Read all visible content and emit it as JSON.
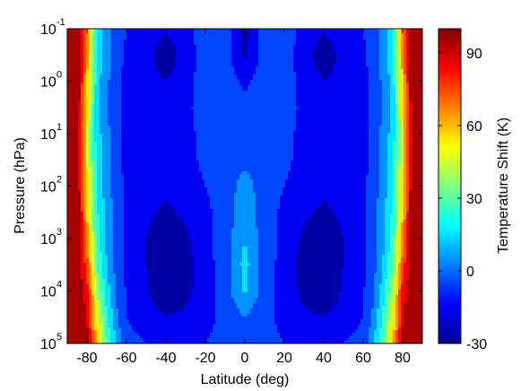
{
  "chart_data": {
    "type": "heatmap",
    "title": "",
    "xlabel": "Latitude (deg)",
    "ylabel": "Pressure (hPa)",
    "colorbar_label": "Temperature Shift (K)",
    "xlim": [
      -90,
      90
    ],
    "x_ticks": [
      -80,
      -60,
      -40,
      -20,
      0,
      20,
      40,
      60,
      80
    ],
    "y_scale": "log",
    "y_direction": "increasing-downward",
    "ylim_exponents": [
      -1,
      5
    ],
    "y_ticks": [
      {
        "base": "10",
        "exp": "-1"
      },
      {
        "base": "10",
        "exp": "0"
      },
      {
        "base": "10",
        "exp": "1"
      },
      {
        "base": "10",
        "exp": "2"
      },
      {
        "base": "10",
        "exp": "3"
      },
      {
        "base": "10",
        "exp": "4"
      },
      {
        "base": "10",
        "exp": "5"
      }
    ],
    "clim": [
      -30,
      100
    ],
    "colorbar_ticks": [
      -30,
      0,
      30,
      60,
      90
    ],
    "colormap": "jet",
    "latitudes": [
      -90,
      -85,
      -80,
      -75,
      -70,
      -65,
      -60,
      -50,
      -40,
      -30,
      -20,
      -10,
      0,
      10,
      20,
      30,
      40,
      50,
      60,
      65,
      70,
      75,
      80,
      85,
      90
    ],
    "log_pressure": [
      -1,
      -0.5,
      0,
      0.5,
      1,
      1.5,
      2,
      2.5,
      3,
      3.5,
      4,
      4.5,
      5
    ],
    "temperature_shift": [
      [
        100,
        100,
        70,
        20,
        5,
        -5,
        -10,
        -12,
        -18,
        -12,
        -6,
        -4,
        -25,
        -4,
        -6,
        -12,
        -18,
        -12,
        -10,
        -5,
        5,
        20,
        70,
        100,
        100
      ],
      [
        100,
        100,
        65,
        18,
        4,
        -6,
        -12,
        -16,
        -28,
        -14,
        -7,
        -5,
        -22,
        -5,
        -7,
        -14,
        -28,
        -16,
        -12,
        -6,
        4,
        18,
        65,
        100,
        100
      ],
      [
        100,
        100,
        60,
        14,
        2,
        -7,
        -13,
        -16,
        -20,
        -13,
        -6,
        -5,
        -12,
        -5,
        -6,
        -13,
        -20,
        -16,
        -13,
        -7,
        2,
        14,
        60,
        100,
        100
      ],
      [
        100,
        100,
        55,
        12,
        1,
        -8,
        -14,
        -16,
        -15,
        -12,
        -6,
        -4,
        -8,
        -4,
        -6,
        -12,
        -15,
        -16,
        -14,
        -8,
        1,
        12,
        55,
        100,
        100
      ],
      [
        100,
        100,
        50,
        15,
        3,
        -8,
        -14,
        -16,
        -15,
        -13,
        -7,
        -5,
        -6,
        -5,
        -7,
        -13,
        -15,
        -16,
        -14,
        -8,
        3,
        15,
        50,
        100,
        100
      ],
      [
        100,
        100,
        50,
        16,
        4,
        -7,
        -13,
        -16,
        -16,
        -13,
        -8,
        -6,
        -3,
        -6,
        -8,
        -13,
        -16,
        -16,
        -13,
        -7,
        4,
        16,
        50,
        100,
        100
      ],
      [
        100,
        100,
        55,
        18,
        5,
        -6,
        -12,
        -16,
        -17,
        -14,
        -10,
        -6,
        5,
        -6,
        -10,
        -14,
        -17,
        -16,
        -12,
        -6,
        5,
        18,
        55,
        100,
        100
      ],
      [
        100,
        100,
        60,
        22,
        6,
        -5,
        -12,
        -18,
        -22,
        -18,
        -12,
        -6,
        7,
        -6,
        -12,
        -18,
        -22,
        -18,
        -12,
        -5,
        6,
        22,
        60,
        100,
        100
      ],
      [
        100,
        100,
        65,
        25,
        8,
        -4,
        -12,
        -20,
        -26,
        -22,
        -13,
        -5,
        10,
        -5,
        -13,
        -22,
        -26,
        -20,
        -12,
        -4,
        8,
        25,
        65,
        100,
        100
      ],
      [
        100,
        100,
        75,
        30,
        10,
        -4,
        -12,
        -20,
        -27,
        -24,
        -14,
        -5,
        14,
        -5,
        -14,
        -24,
        -27,
        -20,
        -12,
        -4,
        10,
        30,
        75,
        100,
        100
      ],
      [
        100,
        100,
        85,
        40,
        15,
        -2,
        -11,
        -19,
        -27,
        -23,
        -14,
        -5,
        12,
        -5,
        -14,
        -23,
        -27,
        -19,
        -11,
        -2,
        15,
        40,
        85,
        100,
        100
      ],
      [
        100,
        100,
        90,
        50,
        22,
        2,
        -10,
        -16,
        -20,
        -18,
        -12,
        -8,
        0,
        -8,
        -12,
        -18,
        -20,
        -16,
        -10,
        2,
        22,
        50,
        90,
        100,
        100
      ],
      [
        100,
        100,
        95,
        60,
        30,
        8,
        -6,
        -10,
        -12,
        -12,
        -10,
        -8,
        -7,
        -8,
        -10,
        -12,
        -12,
        -10,
        -6,
        8,
        30,
        60,
        95,
        100,
        100
      ]
    ]
  }
}
